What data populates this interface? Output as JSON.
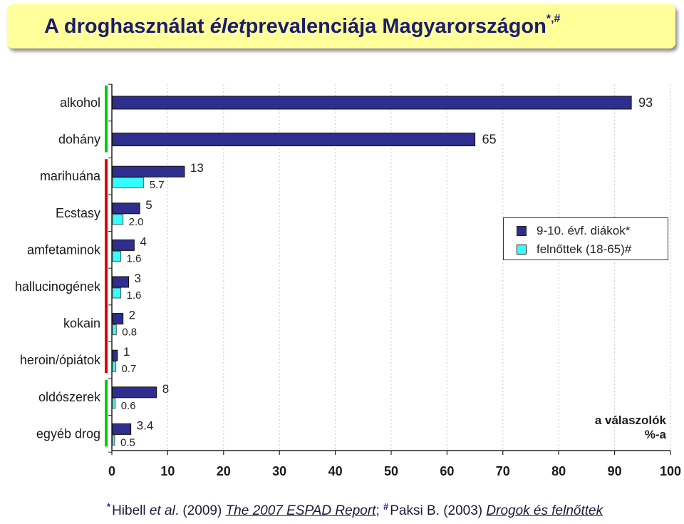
{
  "title": {
    "part1": "A droghasználat ",
    "part2": "élet",
    "part3": "prevalenciája Magyarországon",
    "sup": "*,#"
  },
  "chart_data": {
    "type": "bar",
    "orientation": "horizontal",
    "categories": [
      "alkohol",
      "dohány",
      "marihuána",
      "Ecstasy",
      "amfetaminok",
      "hallucinogének",
      "kokain",
      "heroin/ópiátok",
      "oldószerek",
      "egyéb drog"
    ],
    "series": [
      {
        "name": "9-10. évf. diákok*",
        "color": "#2e2e8f",
        "values": [
          93,
          65,
          13,
          5,
          4,
          3,
          2,
          1,
          8,
          3.4
        ],
        "labels": [
          "93",
          "65",
          "13",
          "5",
          "4",
          "3",
          "2",
          "1",
          "8",
          "3.4"
        ]
      },
      {
        "name": "felnőttek (18-65)#",
        "color": "#33ffff",
        "values": [
          null,
          null,
          5.7,
          2.0,
          1.6,
          1.6,
          0.8,
          0.7,
          0.6,
          0.5
        ],
        "labels": [
          "",
          "",
          "5.7",
          "2.0",
          "1.6",
          "1.6",
          "0.8",
          "0.7",
          "0.6",
          "0.5"
        ]
      }
    ],
    "xlim": [
      0,
      100
    ],
    "xticks": [
      0,
      10,
      20,
      30,
      40,
      50,
      60,
      70,
      80,
      90,
      100
    ],
    "group_markers": [
      {
        "color": "#00cc00",
        "rows": [
          0,
          1
        ]
      },
      {
        "color": "#dd0000",
        "rows": [
          2,
          7
        ]
      },
      {
        "color": "#00cc00",
        "rows": [
          8,
          9
        ]
      }
    ],
    "legend_position": "right"
  },
  "note": {
    "line1": "a válaszolók",
    "line2": "%-a"
  },
  "footer": {
    "mark1": "*",
    "t1": "Hibell ",
    "t2": "et al",
    "t3": ". (2009) ",
    "t4": "The 2007 ESPAD Report",
    "t5": "; ",
    "mark2": "#",
    "t6": "Paksi B. (2003) ",
    "t7": "Drogok és felnőttek"
  }
}
